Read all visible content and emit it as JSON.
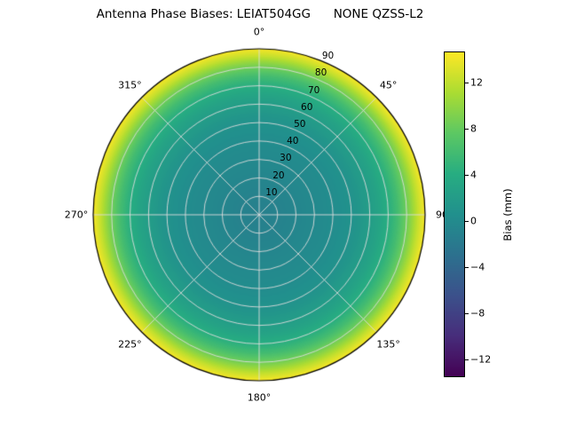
{
  "chart_data": {
    "type": "heatmap",
    "projection": "polar",
    "title": "Antenna Phase Biases: LEIAT504GG      NONE QZSS-L2",
    "theta_zero_location": "N",
    "theta_direction": "clockwise",
    "angle_ticks_deg": [
      0,
      45,
      90,
      135,
      180,
      225,
      270,
      315
    ],
    "angle_tick_labels": [
      "0°",
      "45°",
      "90",
      "135°",
      "180°",
      "225°",
      "270°",
      "315°"
    ],
    "radial_ticks": [
      10,
      20,
      30,
      40,
      50,
      60,
      70,
      80,
      90
    ],
    "radial_max": 90,
    "radial_label_angle_deg": 22.5,
    "grid": true,
    "grid_color": "#dcdcdc",
    "background": "#ffffff",
    "colormap": {
      "name": "viridis",
      "stops": [
        "#440154",
        "#472d7b",
        "#3b518b",
        "#2c718e",
        "#21908d",
        "#27ad81",
        "#5cc863",
        "#aadc32",
        "#fde725"
      ]
    },
    "colorbar": {
      "label": "Bias (mm)",
      "ticks": [
        12,
        8,
        4,
        0,
        -4,
        -8,
        -12
      ],
      "vmin": -13.5,
      "vmax": 14.7
    },
    "radial_profile": {
      "zenith_deg": [
        0,
        10,
        20,
        30,
        40,
        50,
        55,
        60,
        65,
        70,
        75,
        80,
        83,
        86,
        88,
        90
      ],
      "bias_mm": [
        -1.2,
        -1.0,
        -0.6,
        -0.2,
        0.2,
        0.9,
        1.5,
        2.2,
        3.0,
        4.2,
        6.0,
        8.5,
        10.3,
        12.3,
        13.4,
        14.5
      ]
    }
  }
}
